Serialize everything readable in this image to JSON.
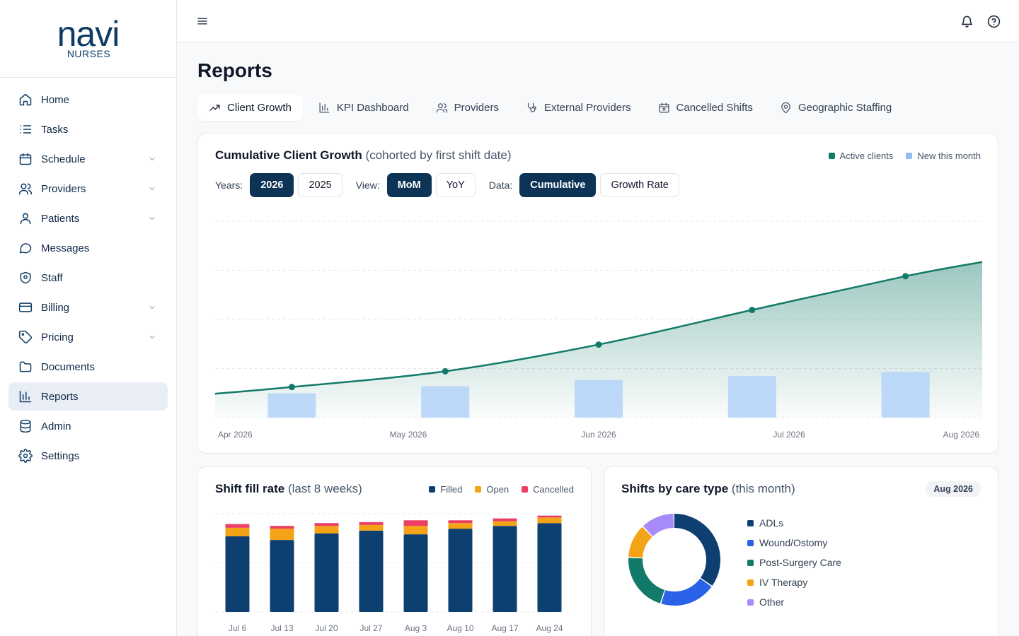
{
  "brand": {
    "name": "navi",
    "subtitle": "NURSES"
  },
  "sidebar": {
    "items": [
      {
        "label": "Home",
        "icon": "home-icon",
        "expandable": false
      },
      {
        "label": "Tasks",
        "icon": "list-icon",
        "expandable": false
      },
      {
        "label": "Schedule",
        "icon": "calendar-icon",
        "expandable": true
      },
      {
        "label": "Providers",
        "icon": "users-icon",
        "expandable": true
      },
      {
        "label": "Patients",
        "icon": "user-icon",
        "expandable": true
      },
      {
        "label": "Messages",
        "icon": "message-icon",
        "expandable": false
      },
      {
        "label": "Staff",
        "icon": "shield-icon",
        "expandable": false
      },
      {
        "label": "Billing",
        "icon": "card-icon",
        "expandable": true
      },
      {
        "label": "Pricing",
        "icon": "tag-icon",
        "expandable": true
      },
      {
        "label": "Documents",
        "icon": "folder-icon",
        "expandable": false
      },
      {
        "label": "Reports",
        "icon": "bar-chart-icon",
        "expandable": false,
        "active": true
      },
      {
        "label": "Admin",
        "icon": "database-icon",
        "expandable": false
      },
      {
        "label": "Settings",
        "icon": "gear-icon",
        "expandable": false
      }
    ]
  },
  "page": {
    "title": "Reports"
  },
  "tabs": [
    {
      "label": "Client Growth",
      "icon": "trend-up-icon",
      "active": true
    },
    {
      "label": "KPI Dashboard",
      "icon": "bar-chart-icon"
    },
    {
      "label": "Providers",
      "icon": "users-icon"
    },
    {
      "label": "External Providers",
      "icon": "stethoscope-icon"
    },
    {
      "label": "Cancelled Shifts",
      "icon": "calendar-x-icon"
    },
    {
      "label": "Geographic Staffing",
      "icon": "map-pin-icon"
    }
  ],
  "growth": {
    "title": "Cumulative Client Growth",
    "subtitle": "(cohorted by first shift date)",
    "legend": {
      "active": "Active clients",
      "new": "New this month"
    },
    "controls": {
      "years_label": "Years:",
      "years": [
        "2026",
        "2025"
      ],
      "years_selected": "2026",
      "view_label": "View:",
      "views": [
        "MoM",
        "YoY"
      ],
      "view_selected": "MoM",
      "data_label": "Data:",
      "data_options": [
        "Cumulative",
        "Growth Rate"
      ],
      "data_selected": "Cumulative"
    },
    "colors": {
      "line": "#127a68",
      "bar": "#b9d6f8"
    }
  },
  "fill": {
    "title": "Shift fill rate",
    "subtitle": "(last 8 weeks)",
    "legend": {
      "filled": "Filled",
      "open": "Open",
      "cancelled": "Cancelled"
    },
    "colors": {
      "filled": "#0d3f70",
      "open": "#f5a316",
      "cancelled": "#ec3f63"
    }
  },
  "care": {
    "title": "Shifts by care type",
    "subtitle": "(this month)",
    "badge": "Aug 2026"
  },
  "chart_data": [
    {
      "type": "line",
      "title": "Cumulative Client Growth",
      "subtitle": "(cohorted by first shift date)",
      "x": [
        "Apr 2026",
        "May 2026",
        "Jun 2026",
        "Jul 2026",
        "Aug 2026"
      ],
      "series": [
        {
          "name": "Active clients",
          "type": "area",
          "values": [
            39,
            59,
            93,
            137,
            180
          ]
        },
        {
          "name": "New this month",
          "type": "bar",
          "values": [
            31,
            40,
            48,
            53,
            58
          ]
        }
      ],
      "ylim": [
        0,
        250
      ],
      "grid": true,
      "legend": "top-right"
    },
    {
      "type": "bar",
      "stacked": true,
      "title": "Shift fill rate",
      "subtitle": "(last 8 weeks)",
      "categories": [
        "Jul 6",
        "Jul 13",
        "Jul 20",
        "Jul 27",
        "Aug 3",
        "Aug 10",
        "Aug 17",
        "Aug 24"
      ],
      "series": [
        {
          "name": "Filled",
          "values": [
            81,
            77,
            84,
            87,
            83,
            89,
            92,
            95
          ]
        },
        {
          "name": "Open",
          "values": [
            9,
            12,
            8,
            6,
            9,
            6,
            5,
            6
          ]
        },
        {
          "name": "Cancelled",
          "values": [
            4,
            3,
            3,
            3,
            6,
            3,
            3,
            2
          ]
        }
      ],
      "ylim": [
        0,
        105
      ],
      "grid": true,
      "legend": "top-right"
    },
    {
      "type": "pie",
      "donut": true,
      "title": "Shifts by care type",
      "subtitle": "(this month)",
      "categories": [
        "ADLs",
        "Wound/Ostomy",
        "Post-Surgery Care",
        "IV Therapy",
        "Other"
      ],
      "values": [
        35,
        20,
        21,
        12,
        12
      ],
      "colors": [
        "#0d3f70",
        "#2a62e8",
        "#127a68",
        "#f5a316",
        "#a78bfa"
      ],
      "legend": "right"
    }
  ]
}
